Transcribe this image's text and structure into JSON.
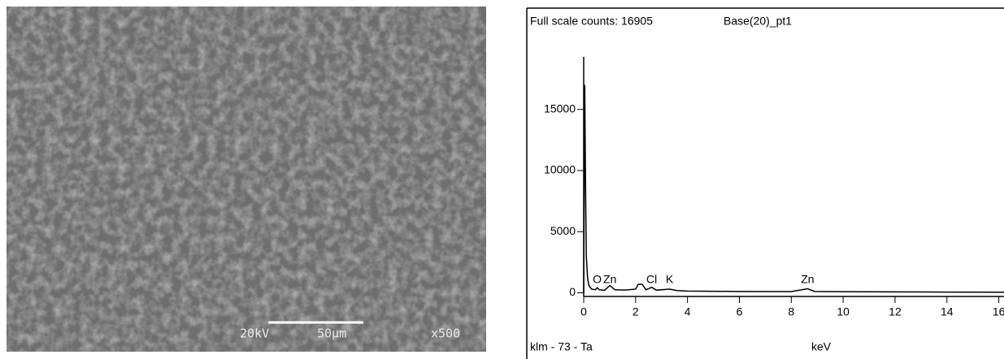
{
  "micrograph": {
    "voltage": "20kV",
    "scale": "50µm",
    "magnification": "x500"
  },
  "chart_data": {
    "type": "line",
    "title": "Full scale counts: 16905",
    "subtitle": "Base(20)_pt1",
    "x_label": "keV",
    "footer": "klm - 73 - Ta",
    "x": [
      0,
      0.02,
      0.04,
      0.07,
      0.1,
      0.15,
      0.2,
      0.3,
      0.45,
      0.52,
      0.6,
      0.8,
      1.01,
      1.2,
      1.6,
      2.0,
      2.1,
      2.25,
      2.4,
      2.62,
      2.8,
      3.31,
      3.6,
      4.0,
      6,
      8.0,
      8.63,
      8.9,
      10,
      12,
      14,
      16.2
    ],
    "series": [
      {
        "color": "#000000",
        "values": [
          0,
          9000,
          17000,
          9000,
          3000,
          1200,
          600,
          300,
          250,
          420,
          250,
          200,
          600,
          250,
          220,
          300,
          700,
          700,
          250,
          450,
          220,
          300,
          180,
          140,
          110,
          100,
          330,
          110,
          90,
          70,
          60,
          50
        ]
      }
    ],
    "annotations": [
      {
        "text": "O",
        "x": 0.52
      },
      {
        "text": "Zn",
        "x": 1.01
      },
      {
        "text": "Cl",
        "x": 2.62
      },
      {
        "text": "K",
        "x": 3.31
      },
      {
        "text": "Zn",
        "x": 8.63
      }
    ],
    "xlim": [
      0,
      16.2
    ],
    "xticks": [
      0,
      2,
      4,
      6,
      8,
      10,
      12,
      14,
      16
    ],
    "ylim": [
      -300,
      19300
    ],
    "yticks": [
      0,
      5000,
      10000,
      15000
    ]
  }
}
